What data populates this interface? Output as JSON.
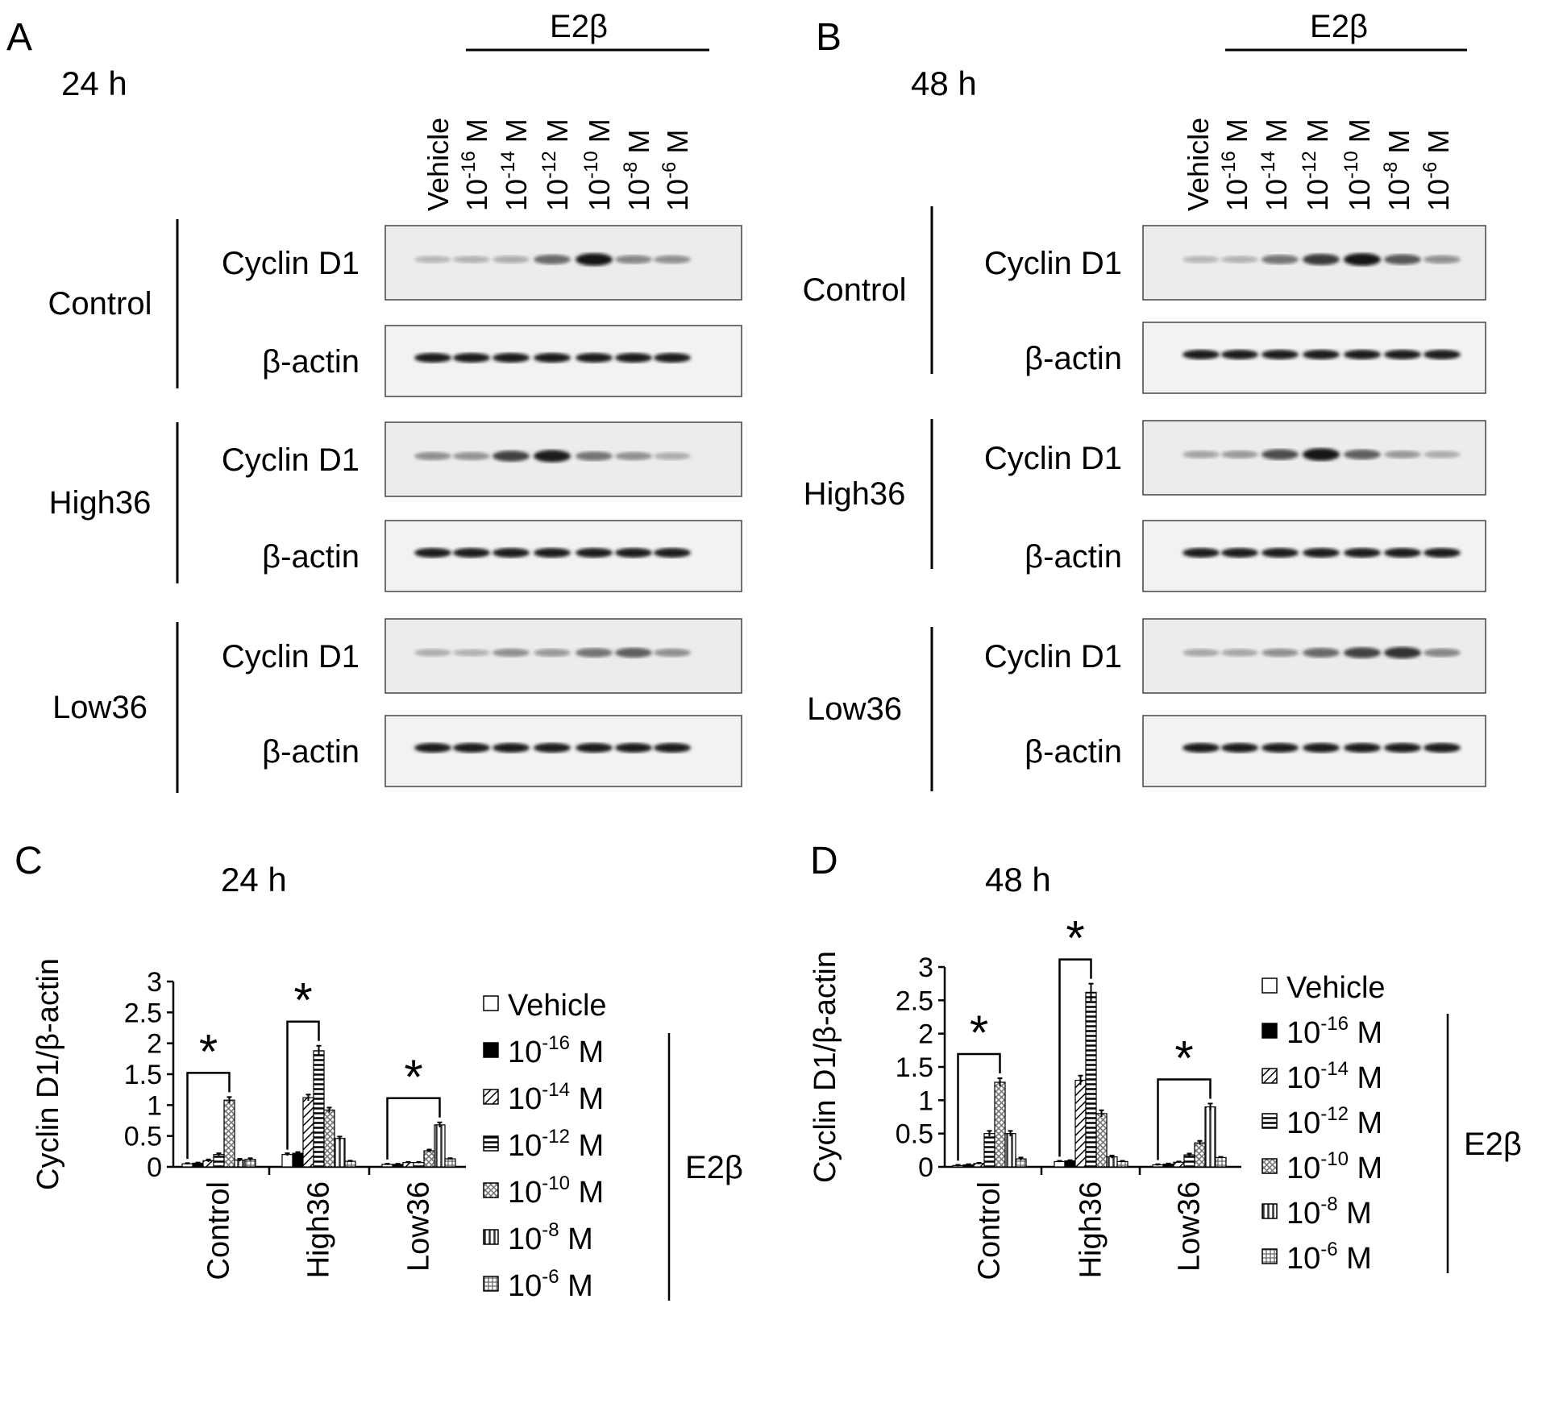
{
  "panels": {
    "A": {
      "letter": "A",
      "time": "24 h"
    },
    "B": {
      "letter": "B",
      "time": "48 h"
    },
    "C": {
      "letter": "C",
      "time": "24 h"
    },
    "D": {
      "letter": "D",
      "time": "48 h"
    }
  },
  "treatment_label": "E2β",
  "lanes": [
    "Vehicle",
    "10",
    "10",
    "10",
    "10",
    "10",
    "10"
  ],
  "lane_exponents": [
    "",
    "-16",
    "-14",
    "-12",
    "-10",
    "-8",
    "-6"
  ],
  "unit": "M",
  "groups": [
    "Control",
    "High36",
    "Low36"
  ],
  "proteins": {
    "target": "Cyclin D1",
    "loading": "β-actin"
  },
  "blot_intensity": {
    "A": {
      "Control": [
        0.1,
        0.12,
        0.16,
        0.5,
        0.95,
        0.35,
        0.3
      ],
      "High36": [
        0.3,
        0.28,
        0.7,
        0.9,
        0.45,
        0.3,
        0.15
      ],
      "Low36": [
        0.15,
        0.12,
        0.3,
        0.25,
        0.45,
        0.55,
        0.3
      ]
    },
    "B": {
      "Control": [
        0.1,
        0.12,
        0.45,
        0.75,
        0.95,
        0.6,
        0.3
      ],
      "High36": [
        0.2,
        0.25,
        0.65,
        0.95,
        0.55,
        0.25,
        0.15
      ],
      "Low36": [
        0.18,
        0.18,
        0.3,
        0.5,
        0.7,
        0.8,
        0.35
      ]
    }
  },
  "legend": {
    "vehicle": "Vehicle",
    "base": "10",
    "exponents": [
      "-16",
      "-14",
      "-12",
      "-10",
      "-8",
      "-6"
    ],
    "unit": "M",
    "bracket_label": "E2β"
  },
  "significance_mark": "*",
  "chart_data": [
    {
      "type": "bar",
      "panel": "C",
      "title": "24 h",
      "ylabel": "Cyclin D1/β-actin",
      "ylim": [
        0,
        3
      ],
      "yticks": [
        "0",
        "0.5",
        "1",
        "1.5",
        "2",
        "2.5",
        "3"
      ],
      "categories": [
        "Control",
        "High36",
        "Low36"
      ],
      "series": [
        {
          "name": "Vehicle",
          "values": [
            0.05,
            0.2,
            0.04
          ]
        },
        {
          "name": "10-16 M",
          "values": [
            0.06,
            0.22,
            0.04
          ]
        },
        {
          "name": "10-14 M",
          "values": [
            0.1,
            1.12,
            0.07
          ]
        },
        {
          "name": "10-12 M",
          "values": [
            0.2,
            1.88,
            0.07
          ]
        },
        {
          "name": "10-10 M",
          "values": [
            1.08,
            0.92,
            0.26
          ]
        },
        {
          "name": "10-8 M",
          "values": [
            0.11,
            0.46,
            0.68
          ]
        },
        {
          "name": "10-6 M",
          "values": [
            0.12,
            0.09,
            0.13
          ]
        }
      ],
      "errors": [
        [
          0.01,
          0.02,
          0.01
        ],
        [
          0.01,
          0.02,
          0.01
        ],
        [
          0.02,
          0.05,
          0.01
        ],
        [
          0.02,
          0.08,
          0.01
        ],
        [
          0.05,
          0.04,
          0.02
        ],
        [
          0.02,
          0.03,
          0.04
        ],
        [
          0.02,
          0.01,
          0.01
        ]
      ],
      "significance": [
        {
          "category": "Control",
          "mark": "*"
        },
        {
          "category": "High36",
          "mark": "*"
        },
        {
          "category": "Low36",
          "mark": "*"
        }
      ]
    },
    {
      "type": "bar",
      "panel": "D",
      "title": "48 h",
      "ylabel": "Cyclin D1/β-actin",
      "ylim": [
        0,
        3
      ],
      "yticks": [
        "0",
        "0.5",
        "1",
        "1.5",
        "2",
        "2.5",
        "3"
      ],
      "categories": [
        "Control",
        "High36",
        "Low36"
      ],
      "series": [
        {
          "name": "Vehicle",
          "values": [
            0.02,
            0.08,
            0.03
          ]
        },
        {
          "name": "10-16 M",
          "values": [
            0.03,
            0.09,
            0.04
          ]
        },
        {
          "name": "10-14 M",
          "values": [
            0.05,
            1.3,
            0.07
          ]
        },
        {
          "name": "10-12 M",
          "values": [
            0.5,
            2.62,
            0.18
          ]
        },
        {
          "name": "10-10 M",
          "values": [
            1.27,
            0.8,
            0.36
          ]
        },
        {
          "name": "10-8 M",
          "values": [
            0.5,
            0.15,
            0.9
          ]
        },
        {
          "name": "10-6 M",
          "values": [
            0.12,
            0.08,
            0.14
          ]
        }
      ],
      "errors": [
        [
          0.01,
          0.01,
          0.01
        ],
        [
          0.01,
          0.01,
          0.01
        ],
        [
          0.01,
          0.07,
          0.01
        ],
        [
          0.04,
          0.13,
          0.02
        ],
        [
          0.06,
          0.05,
          0.03
        ],
        [
          0.04,
          0.02,
          0.05
        ],
        [
          0.02,
          0.01,
          0.01
        ]
      ],
      "significance": [
        {
          "category": "Control",
          "mark": "*"
        },
        {
          "category": "High36",
          "mark": "*"
        },
        {
          "category": "Low36",
          "mark": "*"
        }
      ]
    }
  ]
}
